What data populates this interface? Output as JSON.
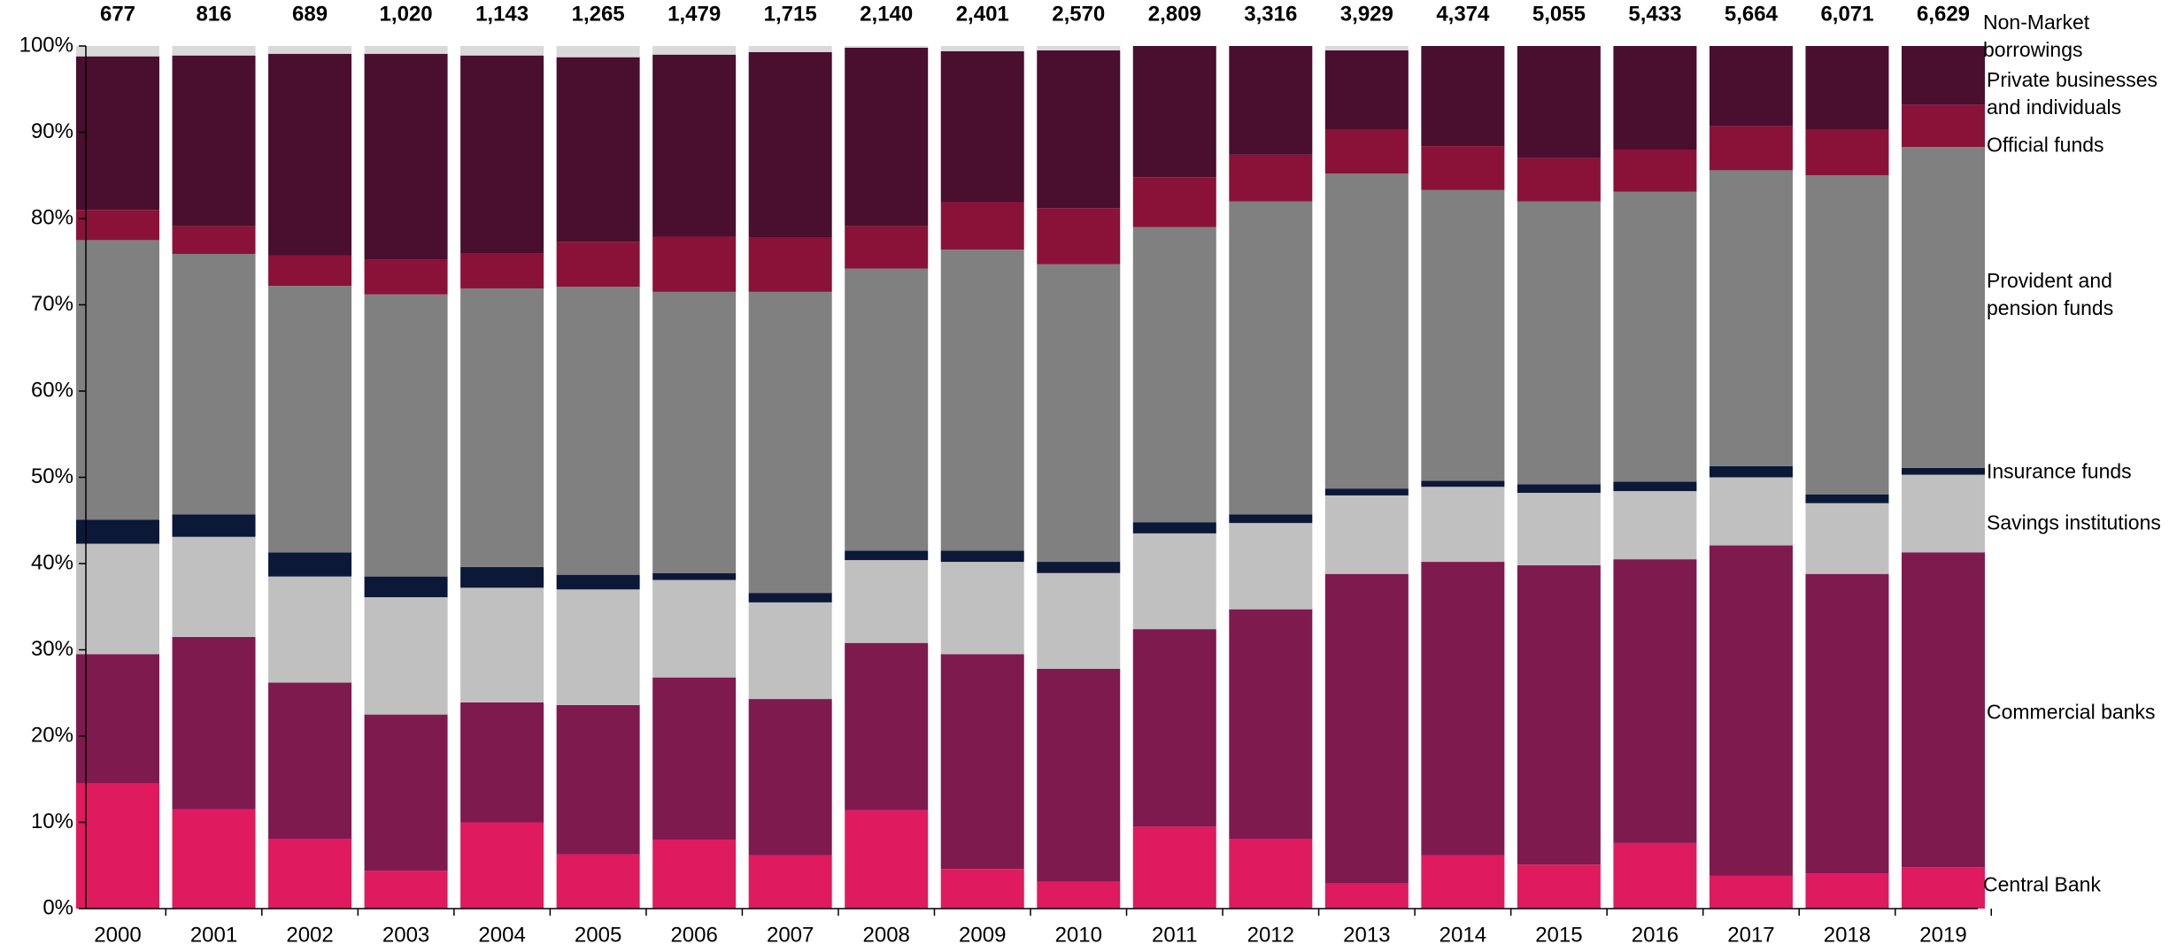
{
  "chart_data": {
    "type": "stacked_bar",
    "categories": [
      "2000",
      "2001",
      "2002",
      "2003",
      "2004",
      "2005",
      "2006",
      "2007",
      "2008",
      "2009",
      "2010",
      "2011",
      "2012",
      "2013",
      "2014",
      "2015",
      "2016",
      "2017",
      "2018",
      "2019"
    ],
    "series": [
      {
        "name": "Central Bank",
        "color": "#e01a5e",
        "values": [
          14.5,
          11.5,
          8.1,
          4.4,
          10.0,
          6.3,
          8.0,
          6.2,
          11.4,
          4.6,
          3.1,
          9.5,
          8.1,
          2.9,
          6.2,
          5.1,
          7.6,
          3.8,
          4.1,
          4.8
        ]
      },
      {
        "name": "Commercial banks",
        "color": "#7f1a4f",
        "values": [
          15.0,
          20.0,
          18.1,
          18.1,
          13.9,
          17.3,
          18.8,
          18.1,
          19.4,
          24.9,
          24.7,
          22.9,
          26.6,
          35.9,
          34.0,
          34.7,
          32.9,
          38.3,
          34.7,
          36.5
        ]
      },
      {
        "name": "Savings institutions",
        "color": "#c0c0c0",
        "values": [
          12.8,
          11.6,
          12.3,
          13.6,
          13.3,
          13.4,
          11.3,
          11.2,
          9.6,
          10.7,
          11.1,
          11.1,
          10.0,
          9.1,
          8.7,
          8.4,
          7.9,
          7.9,
          8.2,
          9.0
        ]
      },
      {
        "name": "Insurance funds",
        "color": "#0b1838",
        "values": [
          2.8,
          2.6,
          2.8,
          2.4,
          2.4,
          1.7,
          0.8,
          1.1,
          1.1,
          1.3,
          1.3,
          1.3,
          1.0,
          0.8,
          0.7,
          1.0,
          1.1,
          1.3,
          1.0,
          0.8
        ]
      },
      {
        "name": "Provident and pension funds",
        "color": "#808080",
        "values": [
          32.4,
          30.2,
          30.9,
          32.7,
          32.3,
          33.4,
          32.6,
          34.9,
          32.7,
          34.9,
          34.5,
          34.2,
          36.3,
          36.5,
          33.7,
          32.8,
          33.6,
          34.3,
          37.0,
          37.2
        ]
      },
      {
        "name": "Official funds",
        "color": "#8a1239",
        "values": [
          3.5,
          3.2,
          3.5,
          4.0,
          4.1,
          5.2,
          6.4,
          6.3,
          4.9,
          5.5,
          6.5,
          5.8,
          5.4,
          5.1,
          5.1,
          5.0,
          4.9,
          5.1,
          5.3,
          4.9
        ]
      },
      {
        "name": "Private businesses and individuals",
        "color": "#4a0e2e",
        "values": [
          17.8,
          19.8,
          23.4,
          23.9,
          22.9,
          21.4,
          21.1,
          21.5,
          20.7,
          17.5,
          18.3,
          15.2,
          12.6,
          9.2,
          11.6,
          13.0,
          12.0,
          9.3,
          9.7,
          6.8
        ]
      },
      {
        "name": "Non-Market borrowings",
        "color": "#d9d9d9",
        "values": [
          1.2,
          1.1,
          0.9,
          0.9,
          1.1,
          1.3,
          1.0,
          0.7,
          0.2,
          0.6,
          0.5,
          0,
          0,
          0.5,
          0,
          0,
          0,
          0,
          0,
          0
        ]
      }
    ],
    "totals": {
      "values": [
        677,
        816,
        689,
        1020,
        1143,
        1265,
        1479,
        1715,
        2140,
        2401,
        2570,
        2809,
        3316,
        3929,
        4374,
        5055,
        5433,
        5664,
        6071,
        6629
      ],
      "value_labels": [
        "677",
        "816",
        "689",
        "1,020",
        "1,143",
        "1,265",
        "1,479",
        "1,715",
        "2,140",
        "2,401",
        "2,570",
        "2,809",
        "3,316",
        "3,929",
        "4,374",
        "5,055",
        "5,433",
        "5,664",
        "6,071",
        "6,629"
      ]
    },
    "ylim": [
      0,
      100
    ],
    "yticks": [
      {
        "value": 0,
        "label": "0%"
      },
      {
        "value": 10,
        "label": "10%"
      },
      {
        "value": 20,
        "label": "20%"
      },
      {
        "value": 30,
        "label": "30%"
      },
      {
        "value": 40,
        "label": "40%"
      },
      {
        "value": 50,
        "label": "50%"
      },
      {
        "value": 60,
        "label": "60%"
      },
      {
        "value": 70,
        "label": "70%"
      },
      {
        "value": 80,
        "label": "80%"
      },
      {
        "value": 90,
        "label": "90%"
      },
      {
        "value": 100,
        "label": "100%"
      }
    ],
    "grid": false,
    "legend": "right"
  }
}
